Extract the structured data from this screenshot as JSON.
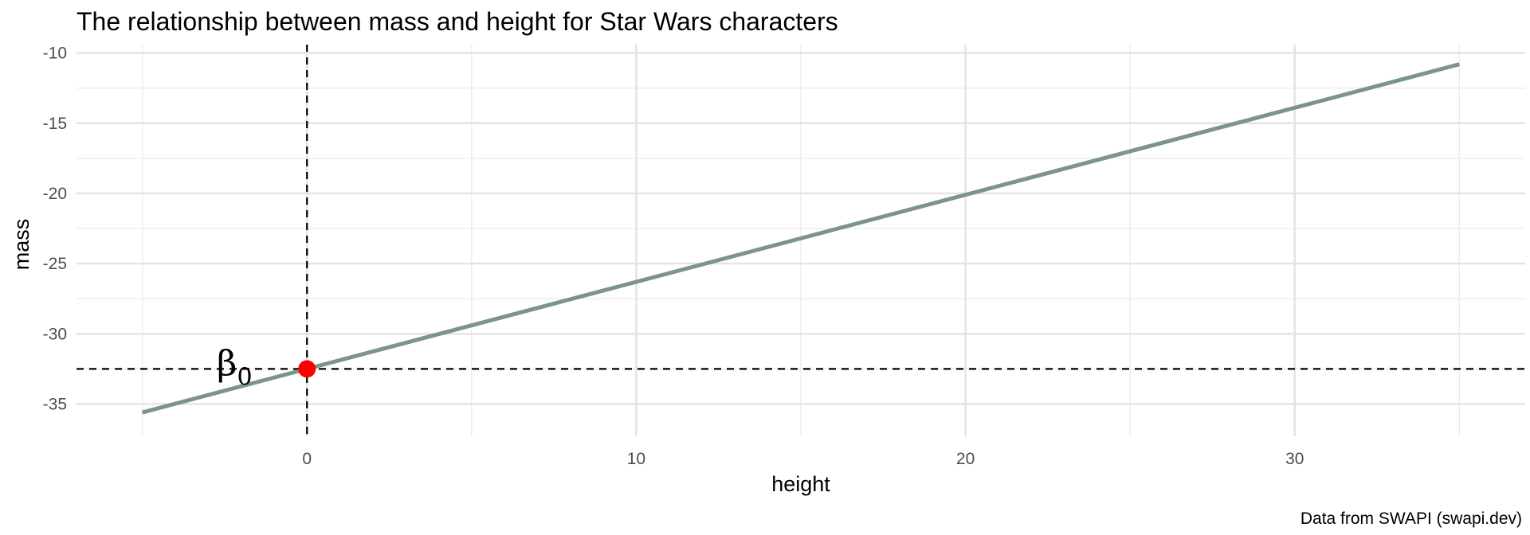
{
  "chart_data": {
    "type": "line",
    "title": "The relationship between mass and height for Star Wars characters",
    "xlabel": "height",
    "ylabel": "mass",
    "caption": "Data from SWAPI (swapi.dev)",
    "xlim": [
      -7,
      37
    ],
    "ylim": [
      -37.3,
      -9.4
    ],
    "x_ticks": [
      0,
      10,
      20,
      30
    ],
    "x_tick_labels": [
      "0",
      "10",
      "20",
      "30"
    ],
    "y_ticks": [
      -35,
      -30,
      -25,
      -20,
      -15,
      -10
    ],
    "y_tick_labels": [
      "-35",
      "-30",
      "-25",
      "-20",
      "-15",
      "-10"
    ],
    "grid": true,
    "legend": "none",
    "series": [
      {
        "x": [
          -5,
          35
        ],
        "y": [
          -35.6,
          -10.8
        ],
        "color": "#7a9685"
      }
    ],
    "reference_lines": [
      {
        "orientation": "vertical",
        "value": 0,
        "style": "dashed",
        "color": "#000000"
      },
      {
        "orientation": "horizontal",
        "value": -32.5,
        "style": "dashed",
        "color": "#000000"
      }
    ],
    "points": [
      {
        "x": 0,
        "y": -32.5,
        "color": "#ff0000"
      }
    ],
    "annotations": [
      {
        "text": "β",
        "subscript": "0",
        "x": -2.2,
        "y": -32.5
      }
    ]
  }
}
